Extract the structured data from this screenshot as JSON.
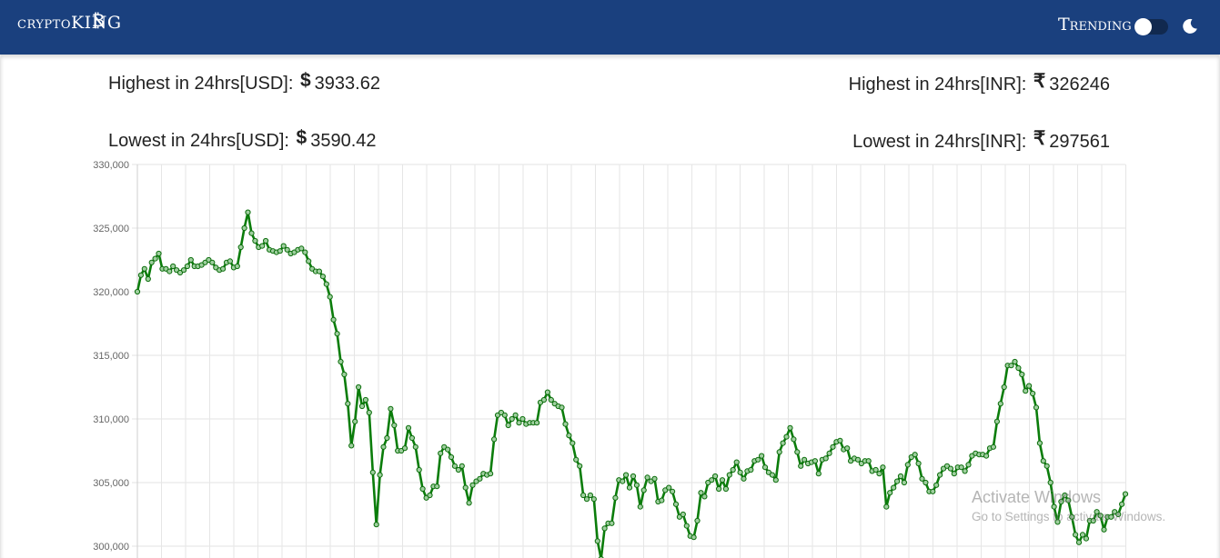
{
  "navbar": {
    "brand": "cryptoKING",
    "brand_icon": "bitcoin-icon",
    "trending_label": "Trending",
    "toggle_on": false,
    "theme_icon": "moon-icon",
    "bg_color": "#1a407e"
  },
  "stats": {
    "high_usd_label": "Highest in 24hrs[USD]:",
    "high_usd_symbol": "$",
    "high_usd_value": "3933.62",
    "low_usd_label": "Lowest in 24hrs[USD]:",
    "low_usd_symbol": "$",
    "low_usd_value": "3590.42",
    "high_inr_label": "Highest in 24hrs[INR]:",
    "high_inr_symbol": "₹",
    "high_inr_value": "326246",
    "low_inr_label": "Lowest in 24hrs[INR]:",
    "low_inr_symbol": "₹",
    "low_inr_value": "297561"
  },
  "watermark": {
    "title": "Activate Windows",
    "subtitle": "Go to Settings to activate Windows."
  },
  "chart_data": {
    "type": "line",
    "color": "#0b7d0b",
    "grid": true,
    "y_ticks": [
      "330,000",
      "325,000",
      "320,000",
      "315,000",
      "310,000",
      "305,000",
      "300,000"
    ],
    "ylim": [
      299000,
      330000
    ],
    "values": [
      320000,
      321300,
      321800,
      321000,
      322300,
      322600,
      323000,
      321800,
      321800,
      321600,
      322000,
      321700,
      321500,
      321700,
      322000,
      322500,
      322000,
      322000,
      322100,
      322300,
      322500,
      322300,
      321900,
      321700,
      321800,
      322300,
      322400,
      321900,
      322000,
      323500,
      325000,
      326246,
      324600,
      324000,
      323500,
      323600,
      324000,
      323300,
      323200,
      323100,
      323200,
      323600,
      323300,
      323000,
      323100,
      323300,
      323400,
      323100,
      322400,
      321800,
      321600,
      321600,
      321200,
      320600,
      319600,
      317800,
      316700,
      314500,
      313500,
      311200,
      307900,
      309800,
      312500,
      311000,
      311500,
      310500,
      305800,
      301700,
      305600,
      307800,
      308500,
      310800,
      309500,
      307500,
      307500,
      307700,
      309300,
      308500,
      307800,
      306000,
      304500,
      303800,
      304000,
      304700,
      304700,
      307300,
      307800,
      307600,
      307000,
      306300,
      306000,
      306300,
      304600,
      303400,
      304800,
      305100,
      305300,
      305700,
      305600,
      305700,
      308400,
      310300,
      310500,
      310300,
      309500,
      310000,
      310300,
      309700,
      310000,
      309600,
      309700,
      309700,
      309700,
      311300,
      311500,
      312100,
      311500,
      311200,
      311000,
      310900,
      309600,
      308700,
      308100,
      306800,
      306300,
      304000,
      303700,
      304000,
      303700,
      300400,
      299000,
      301400,
      301800,
      301800,
      303800,
      305200,
      305100,
      305600,
      304600,
      305500,
      304800,
      303100,
      304400,
      305400,
      305100,
      305300,
      303500,
      303600,
      304400,
      304600,
      304300,
      303300,
      302300,
      302500,
      301600,
      300800,
      300700,
      302000,
      304200,
      303900,
      305000,
      305200,
      305500,
      304500,
      305200,
      304500,
      305600,
      306000,
      306600,
      305800,
      305300,
      305900,
      306000,
      306700,
      306800,
      307100,
      306200,
      305800,
      305600,
      305200,
      307400,
      308100,
      308600,
      309300,
      308400,
      307400,
      306300,
      306800,
      306500,
      306600,
      306700,
      305700,
      306800,
      306900,
      307300,
      307800,
      308200,
      308300,
      307600,
      307700,
      306700,
      306900,
      306800,
      306500,
      306700,
      306700,
      305900,
      306000,
      305700,
      306200,
      303100,
      304200,
      304600,
      305100,
      305500,
      305000,
      306400,
      307000,
      307200,
      306500,
      305300,
      305000,
      304300,
      304300,
      304800,
      305600,
      306100,
      306300,
      306100,
      305700,
      306200,
      306200,
      305900,
      306400,
      307100,
      307300,
      307200,
      307200,
      307100,
      307700,
      307800,
      309800,
      311200,
      312500,
      314200,
      314200,
      314500,
      314000,
      313500,
      312200,
      312600,
      312000,
      310900,
      308100,
      306700,
      306300,
      305000,
      303100,
      301900,
      303500,
      304000,
      303600,
      302300,
      300900,
      300300,
      300900,
      300600,
      302000,
      302000,
      302700,
      302400,
      301300,
      302300,
      302300,
      302700,
      302500,
      303300,
      304100
    ]
  }
}
